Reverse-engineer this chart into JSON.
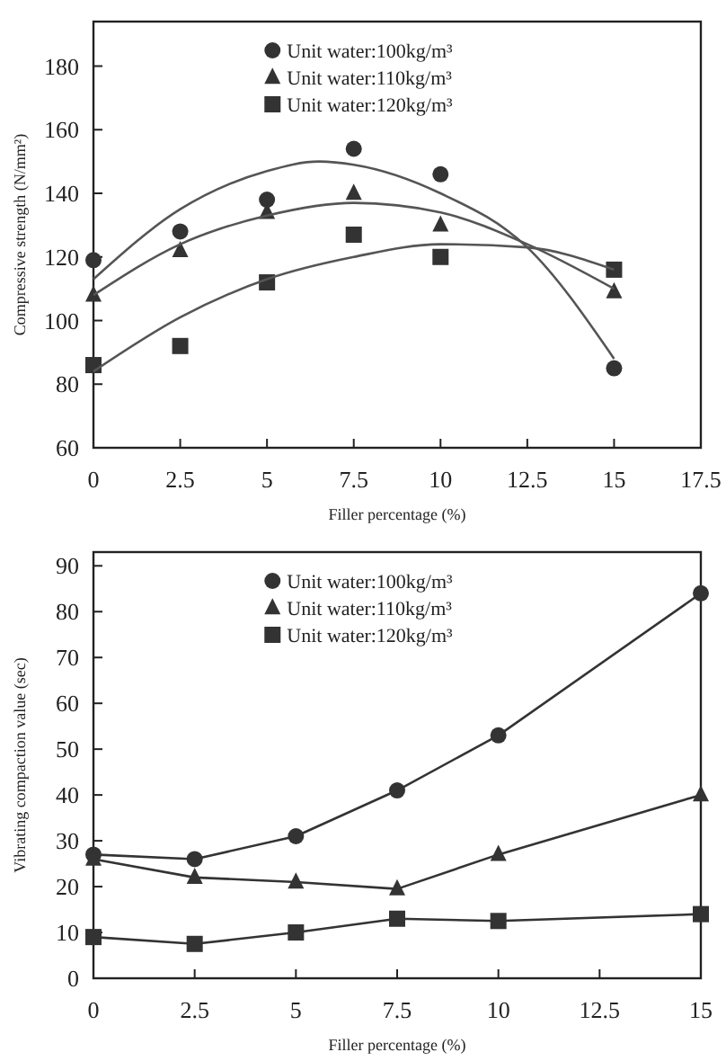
{
  "chart_data": [
    {
      "type": "scatter",
      "xlabel": "Filler percentage (%)",
      "ylabel": "Compressive strength (N/mm²)",
      "xlim": [
        0,
        17.5
      ],
      "ylim": [
        60,
        194
      ],
      "xticks": [
        0,
        2.5,
        5,
        7.5,
        10,
        12.5,
        15,
        17.5
      ],
      "yticks": [
        60,
        80,
        100,
        120,
        140,
        160,
        180
      ],
      "legend": "top",
      "series": [
        {
          "name": "Unit water:100kg/m³",
          "marker": "circle",
          "color": "#333333",
          "x": [
            0,
            2.5,
            5,
            7.5,
            10,
            15
          ],
          "values": [
            119,
            128,
            138,
            154,
            146,
            85
          ]
        },
        {
          "name": "Unit water:110kg/m³",
          "marker": "triangle",
          "color": "#333333",
          "x": [
            0,
            2.5,
            5,
            7.5,
            10,
            15
          ],
          "values": [
            108,
            122,
            134,
            140,
            130,
            109
          ]
        },
        {
          "name": "Unit water:120kg/m³",
          "marker": "square",
          "color": "#333333",
          "x": [
            0,
            2.5,
            5,
            7.5,
            10,
            15
          ],
          "values": [
            86,
            92,
            112,
            127,
            120,
            116
          ]
        },
        {
          "type": "line",
          "marker": "none",
          "color": "#555555",
          "x": [
            0,
            2.5,
            5,
            6.5,
            7.5,
            10,
            12.5,
            15
          ],
          "values": [
            113,
            135,
            147,
            150,
            149,
            140,
            123,
            88
          ]
        },
        {
          "type": "line",
          "marker": "none",
          "color": "#555555",
          "x": [
            0,
            2.5,
            5,
            7.5,
            10,
            12.5,
            15
          ],
          "values": [
            108,
            124,
            133,
            137,
            134,
            124,
            110
          ]
        },
        {
          "type": "line",
          "marker": "none",
          "color": "#555555",
          "x": [
            0,
            2.5,
            5,
            7.5,
            10,
            12.5,
            15
          ],
          "values": [
            84,
            101,
            113,
            120,
            124,
            123,
            116
          ]
        }
      ]
    },
    {
      "type": "line",
      "xlabel": "Filler percentage (%)",
      "ylabel": "Vibrating compaction value (sec)",
      "xlim": [
        0,
        15
      ],
      "ylim": [
        0,
        93
      ],
      "xticks": [
        0,
        2.5,
        5,
        7.5,
        10,
        12.5,
        15
      ],
      "yticks": [
        0,
        10,
        20,
        30,
        40,
        50,
        60,
        70,
        80,
        90
      ],
      "legend": "top",
      "series": [
        {
          "name": "Unit water:100kg/m³",
          "marker": "circle",
          "color": "#333333",
          "x": [
            0,
            2.5,
            5,
            7.5,
            10,
            15
          ],
          "values": [
            27,
            26,
            31,
            41,
            53,
            84
          ]
        },
        {
          "name": "Unit water:110kg/m³",
          "marker": "triangle",
          "color": "#333333",
          "x": [
            0,
            2.5,
            5,
            7.5,
            10,
            15
          ],
          "values": [
            26,
            22,
            21,
            19.5,
            27,
            40
          ]
        },
        {
          "name": "Unit water:120kg/m³",
          "marker": "square",
          "color": "#333333",
          "x": [
            0,
            2.5,
            5,
            7.5,
            10,
            15
          ],
          "values": [
            9,
            7.5,
            10,
            13,
            12.5,
            14
          ]
        }
      ]
    }
  ]
}
